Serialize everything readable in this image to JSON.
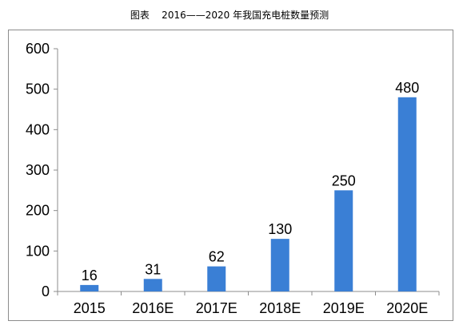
{
  "caption": "图表    2016——2020 年我国充电桩数量预测",
  "chart_data": {
    "type": "bar",
    "title": "",
    "xlabel": "",
    "ylabel": "",
    "categories": [
      "2015",
      "2016E",
      "2017E",
      "2018E",
      "2019E",
      "2020E"
    ],
    "values": [
      16,
      31,
      62,
      130,
      250,
      480
    ],
    "ylim": [
      0,
      600
    ],
    "yticks": [
      0,
      100,
      200,
      300,
      400,
      500,
      600
    ],
    "data_labels": true,
    "grid": false,
    "bar_color": "#3a7fd5"
  }
}
